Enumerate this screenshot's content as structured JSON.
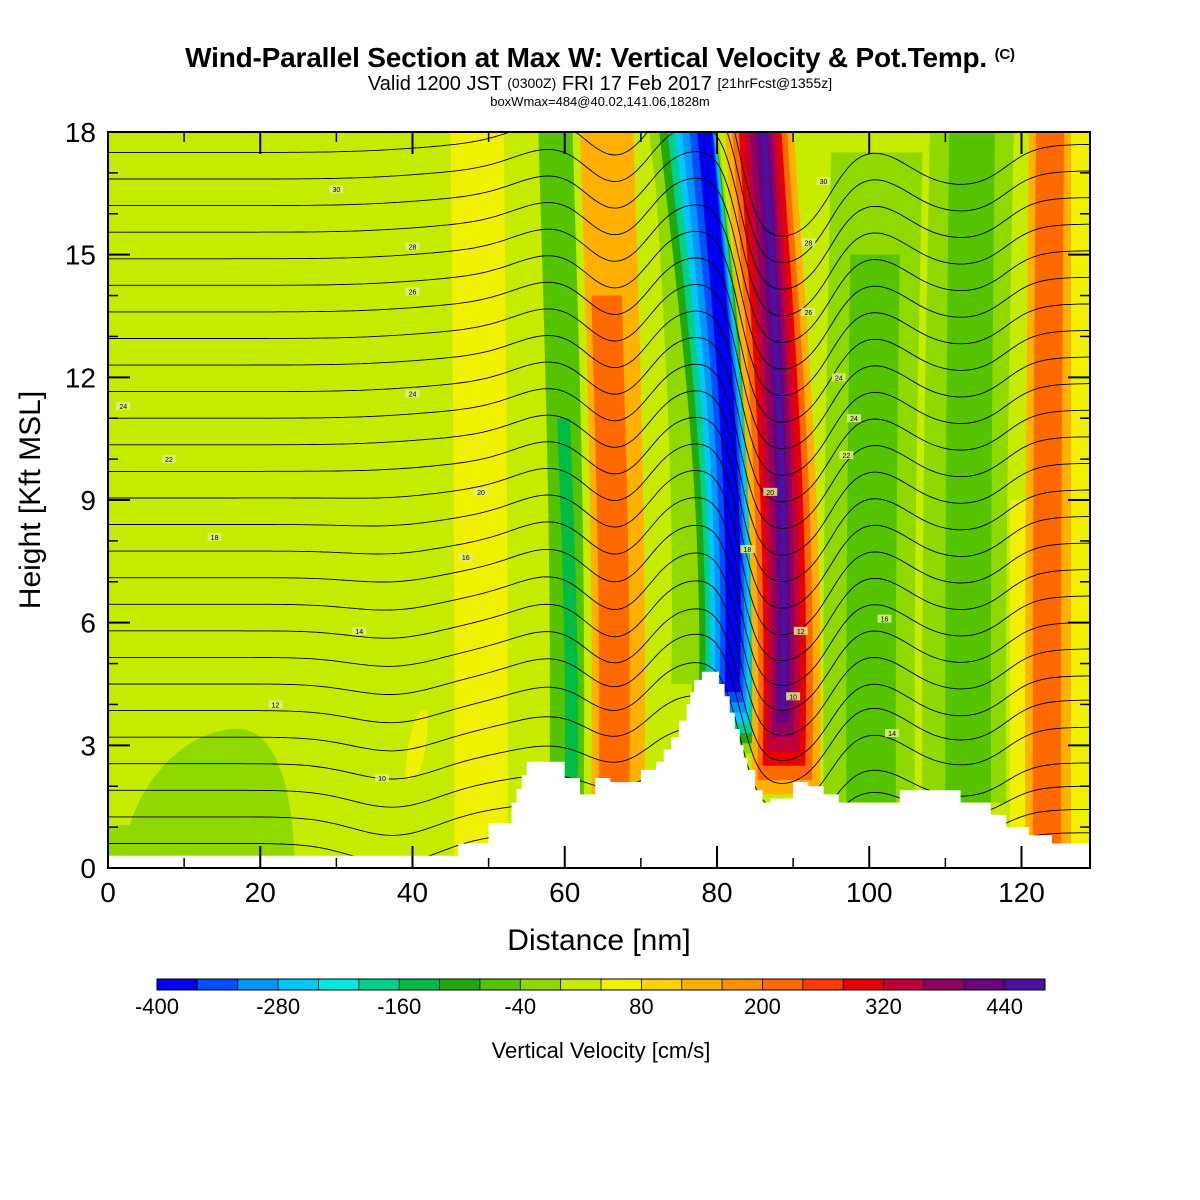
{
  "title": {
    "main": "Wind-Parallel Section at Max W: Vertical Velocity & Pot.Temp.",
    "copyright": "(C)",
    "valid_prefix": "Valid 1200 JST",
    "valid_z": "(0300Z)",
    "valid_date": "FRI 17 Feb 2017",
    "valid_fcst": "[21hrFcst@1355z]",
    "box": "boxWmax=484@40.02,141.06,1828m"
  },
  "chart_data": {
    "type": "contour",
    "xlabel": "Distance [nm]",
    "ylabel": "Height [Kft MSL]",
    "xlim": [
      0,
      129
    ],
    "ylim": [
      0,
      18
    ],
    "xticks": [
      0,
      20,
      40,
      60,
      80,
      100,
      120
    ],
    "yticks": [
      0,
      3,
      6,
      9,
      12,
      15,
      18
    ],
    "colorbar": {
      "label": "Vertical Velocity [cm/s]",
      "tick_labels": [
        "-400",
        "-280",
        "-160",
        "-40",
        "80",
        "200",
        "320",
        "440"
      ],
      "levels_from": -400,
      "level_step": 40,
      "colors": [
        "#0000ee",
        "#0050ff",
        "#0096ff",
        "#00c8ff",
        "#00e8e0",
        "#00d18a",
        "#00bb44",
        "#22a80c",
        "#55c300",
        "#8fd800",
        "#c6ea00",
        "#f0f000",
        "#ffd200",
        "#ffb000",
        "#ff9000",
        "#ff6a00",
        "#ff3a00",
        "#e80000",
        "#c0003a",
        "#900060",
        "#6a0080",
        "#4a10a0"
      ]
    },
    "vertical_velocity_bands": [
      {
        "x": [
          45.5,
          52
        ],
        "w": 60,
        "note": "updraft"
      },
      {
        "x": [
          56,
          62
        ],
        "w": -60
      },
      {
        "x": [
          63,
          71
        ],
        "w": 140
      },
      {
        "x": [
          78,
          87
        ],
        "w": -400,
        "note": "downdraft core"
      },
      {
        "x": [
          86,
          92
        ],
        "w": 484,
        "note": "updraft core (max)"
      },
      {
        "x": [
          94,
          106
        ],
        "w": -40
      },
      {
        "x": [
          107,
          118
        ],
        "w": -80
      },
      {
        "x": [
          120,
          126
        ],
        "w": 140
      }
    ],
    "terrain": {
      "x": [
        0,
        46,
        46,
        50,
        53,
        55,
        58,
        62,
        64,
        66,
        70,
        72,
        74,
        76,
        77,
        78,
        79.5,
        81,
        83,
        84,
        85,
        86,
        87,
        90,
        92,
        94,
        96,
        100,
        104,
        108,
        112,
        116,
        118,
        121,
        124,
        129
      ],
      "z": [
        0.3,
        0.3,
        0.6,
        1.1,
        1.6,
        2.6,
        2.6,
        1.8,
        2.2,
        2.1,
        2.4,
        2.6,
        3.2,
        4.0,
        4.6,
        4.8,
        4.8,
        4.2,
        3.0,
        2.4,
        1.9,
        1.6,
        1.7,
        2.1,
        2.0,
        1.8,
        1.6,
        1.6,
        1.9,
        1.9,
        1.6,
        1.3,
        1.0,
        0.8,
        0.6,
        0.3
      ]
    },
    "potential_temperature_labels": [
      "10",
      "12",
      "14",
      "16",
      "18",
      "20",
      "22",
      "24",
      "26",
      "28",
      "30"
    ]
  }
}
